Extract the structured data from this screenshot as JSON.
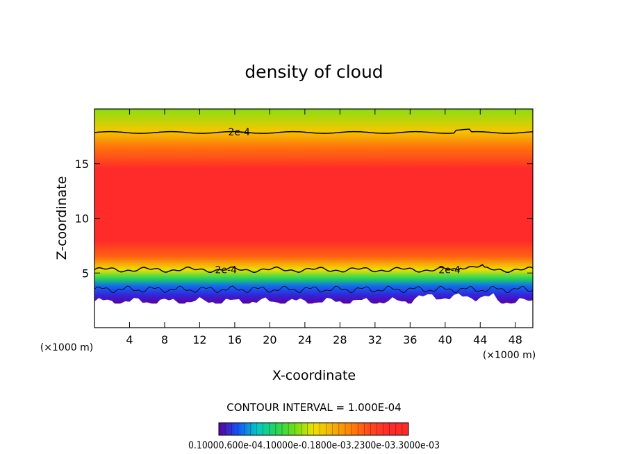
{
  "chart_data": {
    "type": "heatmap",
    "title": "density of cloud",
    "xlabel": "X-coordinate",
    "ylabel": "Z-coordinate",
    "x_unit": "(×1000 m)",
    "z_unit": "(×1000 m)",
    "xlim": [
      0,
      50
    ],
    "ylim": [
      0,
      20
    ],
    "x_ticks": [
      4,
      8,
      12,
      16,
      20,
      24,
      28,
      32,
      36,
      40,
      44,
      48
    ],
    "y_ticks": [
      5,
      10,
      15
    ],
    "contour_interval_text": "CONTOUR INTERVAL = 1.000E-04",
    "contour_labels": [
      {
        "text": "2e-4",
        "x": 16.5,
        "z": 17.9
      },
      {
        "text": "2e-4",
        "x": 15.0,
        "z": 5.3
      },
      {
        "text": "2e-4",
        "x": 40.5,
        "z": 5.3
      }
    ],
    "colorbar_labels": [
      "0.1000",
      "0.600e-04",
      "0.1000e-03",
      "0.1800e-03",
      "0.2300e-03",
      "0.3000e-03"
    ],
    "colorbar_label_text": "0.10000.600e-04.10000e-0.1800e-03.2300e-03.3000e-03",
    "value_profile": [
      {
        "z": 2.2,
        "v": 0.0
      },
      {
        "z": 3.0,
        "v": 0.05
      },
      {
        "z": 3.8,
        "v": 0.12
      },
      {
        "z": 4.5,
        "v": 0.3
      },
      {
        "z": 5.3,
        "v": 0.5
      },
      {
        "z": 6.5,
        "v": 0.75
      },
      {
        "z": 8.0,
        "v": 0.93
      },
      {
        "z": 12.0,
        "v": 0.95
      },
      {
        "z": 14.5,
        "v": 0.88
      },
      {
        "z": 16.5,
        "v": 0.72
      },
      {
        "z": 18.0,
        "v": 0.55
      },
      {
        "z": 20.0,
        "v": 0.42
      }
    ],
    "colors": {
      "low": "#5a00a0",
      "blue": "#1a3cff",
      "cyan": "#00c8c8",
      "green": "#33dd22",
      "yellow": "#eee000",
      "orange": "#ff8a00",
      "red": "#ff2a2a"
    }
  }
}
